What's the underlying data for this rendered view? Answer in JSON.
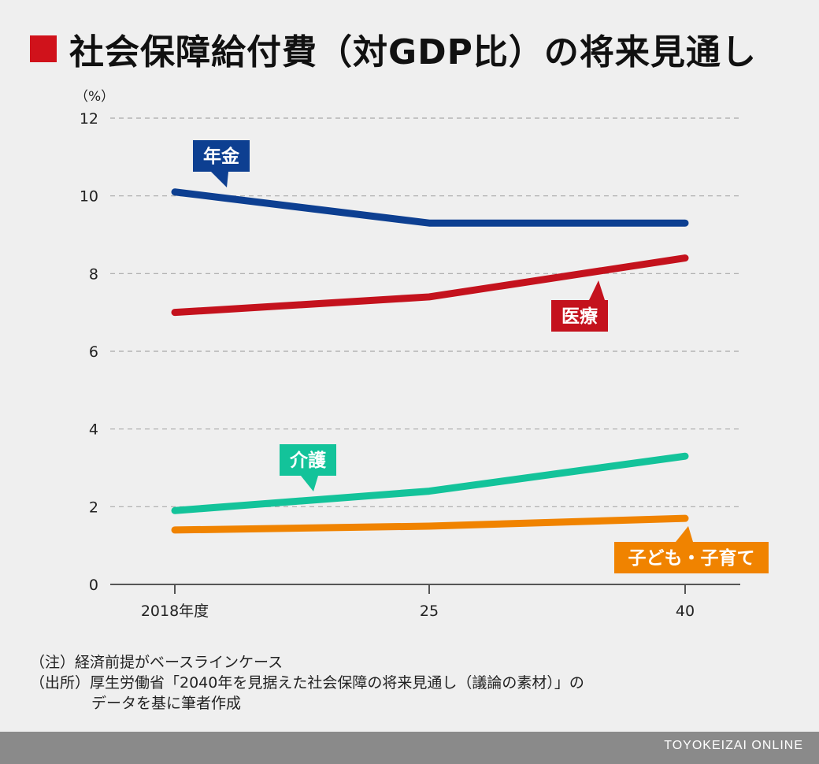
{
  "title": "社会保障給付費（対GDP比）の将来見通し",
  "chart_data": {
    "type": "line",
    "title": "社会保障給付費（対GDP比）の将来見通し",
    "ylabel": "（%）",
    "xlabel": "",
    "categories": [
      "2018年度",
      "25",
      "40"
    ],
    "ylim": [
      0,
      12
    ],
    "yticks": [
      0,
      2,
      4,
      6,
      8,
      10,
      12
    ],
    "grid": true,
    "series": [
      {
        "name": "年金",
        "values": [
          10.1,
          9.3,
          9.3
        ],
        "color": "#0d3f91"
      },
      {
        "name": "医療",
        "values": [
          7.0,
          7.4,
          8.4
        ],
        "color": "#c4121d"
      },
      {
        "name": "介護",
        "values": [
          1.9,
          2.4,
          3.3
        ],
        "color": "#13c39a"
      },
      {
        "name": "子ども・子育て",
        "values": [
          1.4,
          1.5,
          1.7
        ],
        "color": "#f08300"
      }
    ]
  },
  "notes": {
    "note1": "（注）経済前提がベースラインケース",
    "note2": "（出所）厚生労働省「2040年を見据えた社会保障の将来見通し（議論の素材）」の",
    "note3": "データを基に筆者作成"
  },
  "footer": "TOYOKEIZAI ONLINE"
}
